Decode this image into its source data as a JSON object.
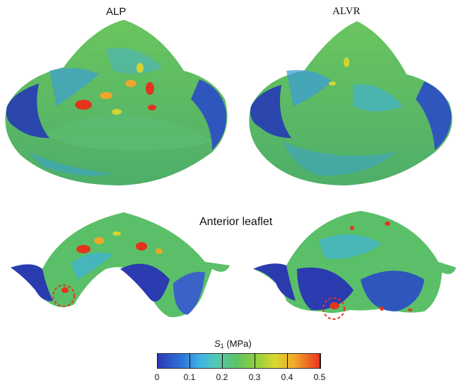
{
  "labels": {
    "left_title": "ALP",
    "right_title": "ALVR",
    "middle_label": "Anterior leaflet"
  },
  "colorbar": {
    "symbol": "S",
    "subscript": "1",
    "unit": "(MPa)",
    "ticks": [
      "0",
      "0.1",
      "0.2",
      "0.3",
      "0.4",
      "0.5"
    ],
    "colors": [
      "#2b3ab3",
      "#3eb3e6",
      "#5cc26a",
      "#d8d830",
      "#e8321c"
    ]
  },
  "annotations": {
    "highlight_circle_color": "#e8321c"
  }
}
